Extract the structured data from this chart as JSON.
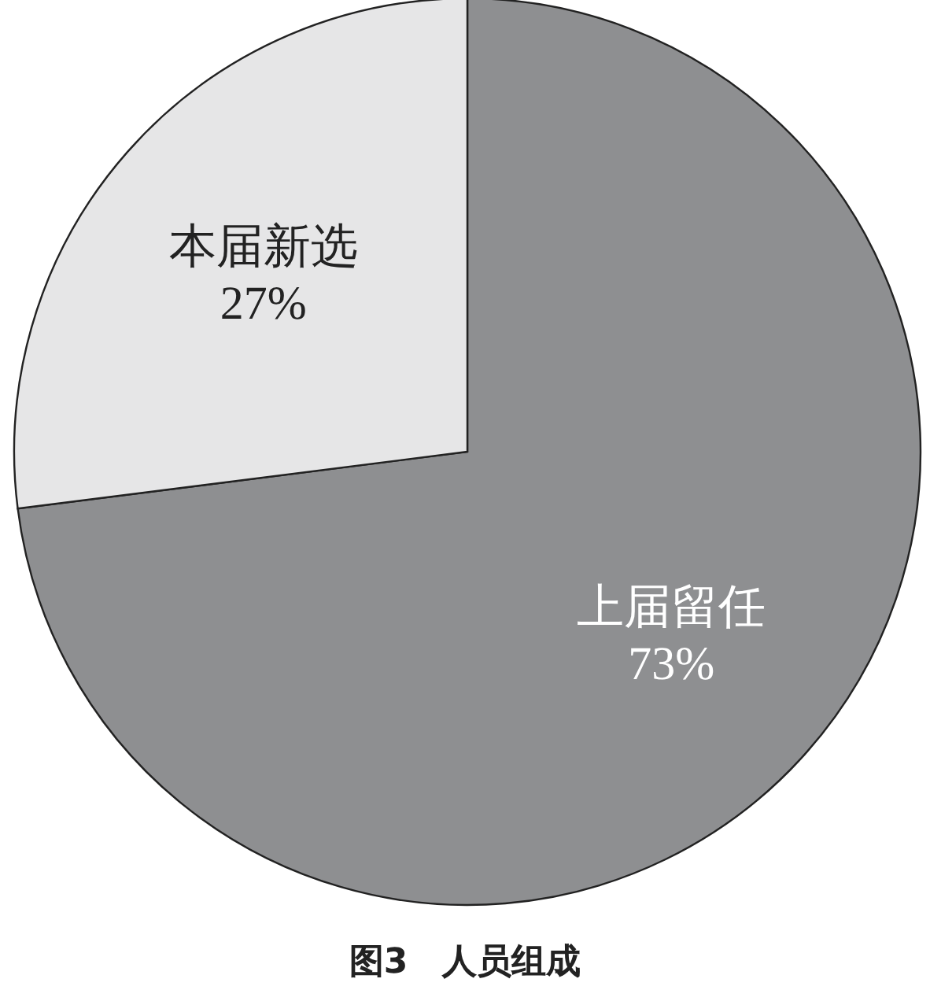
{
  "chart_data": {
    "type": "pie",
    "title": "图3　人员组成",
    "categories": [
      "上届留任",
      "本届新选"
    ],
    "values": [
      73,
      27
    ],
    "colors": [
      "#8e8f91",
      "#e6e6e7"
    ],
    "value_labels": [
      "73%",
      "27%"
    ]
  }
}
